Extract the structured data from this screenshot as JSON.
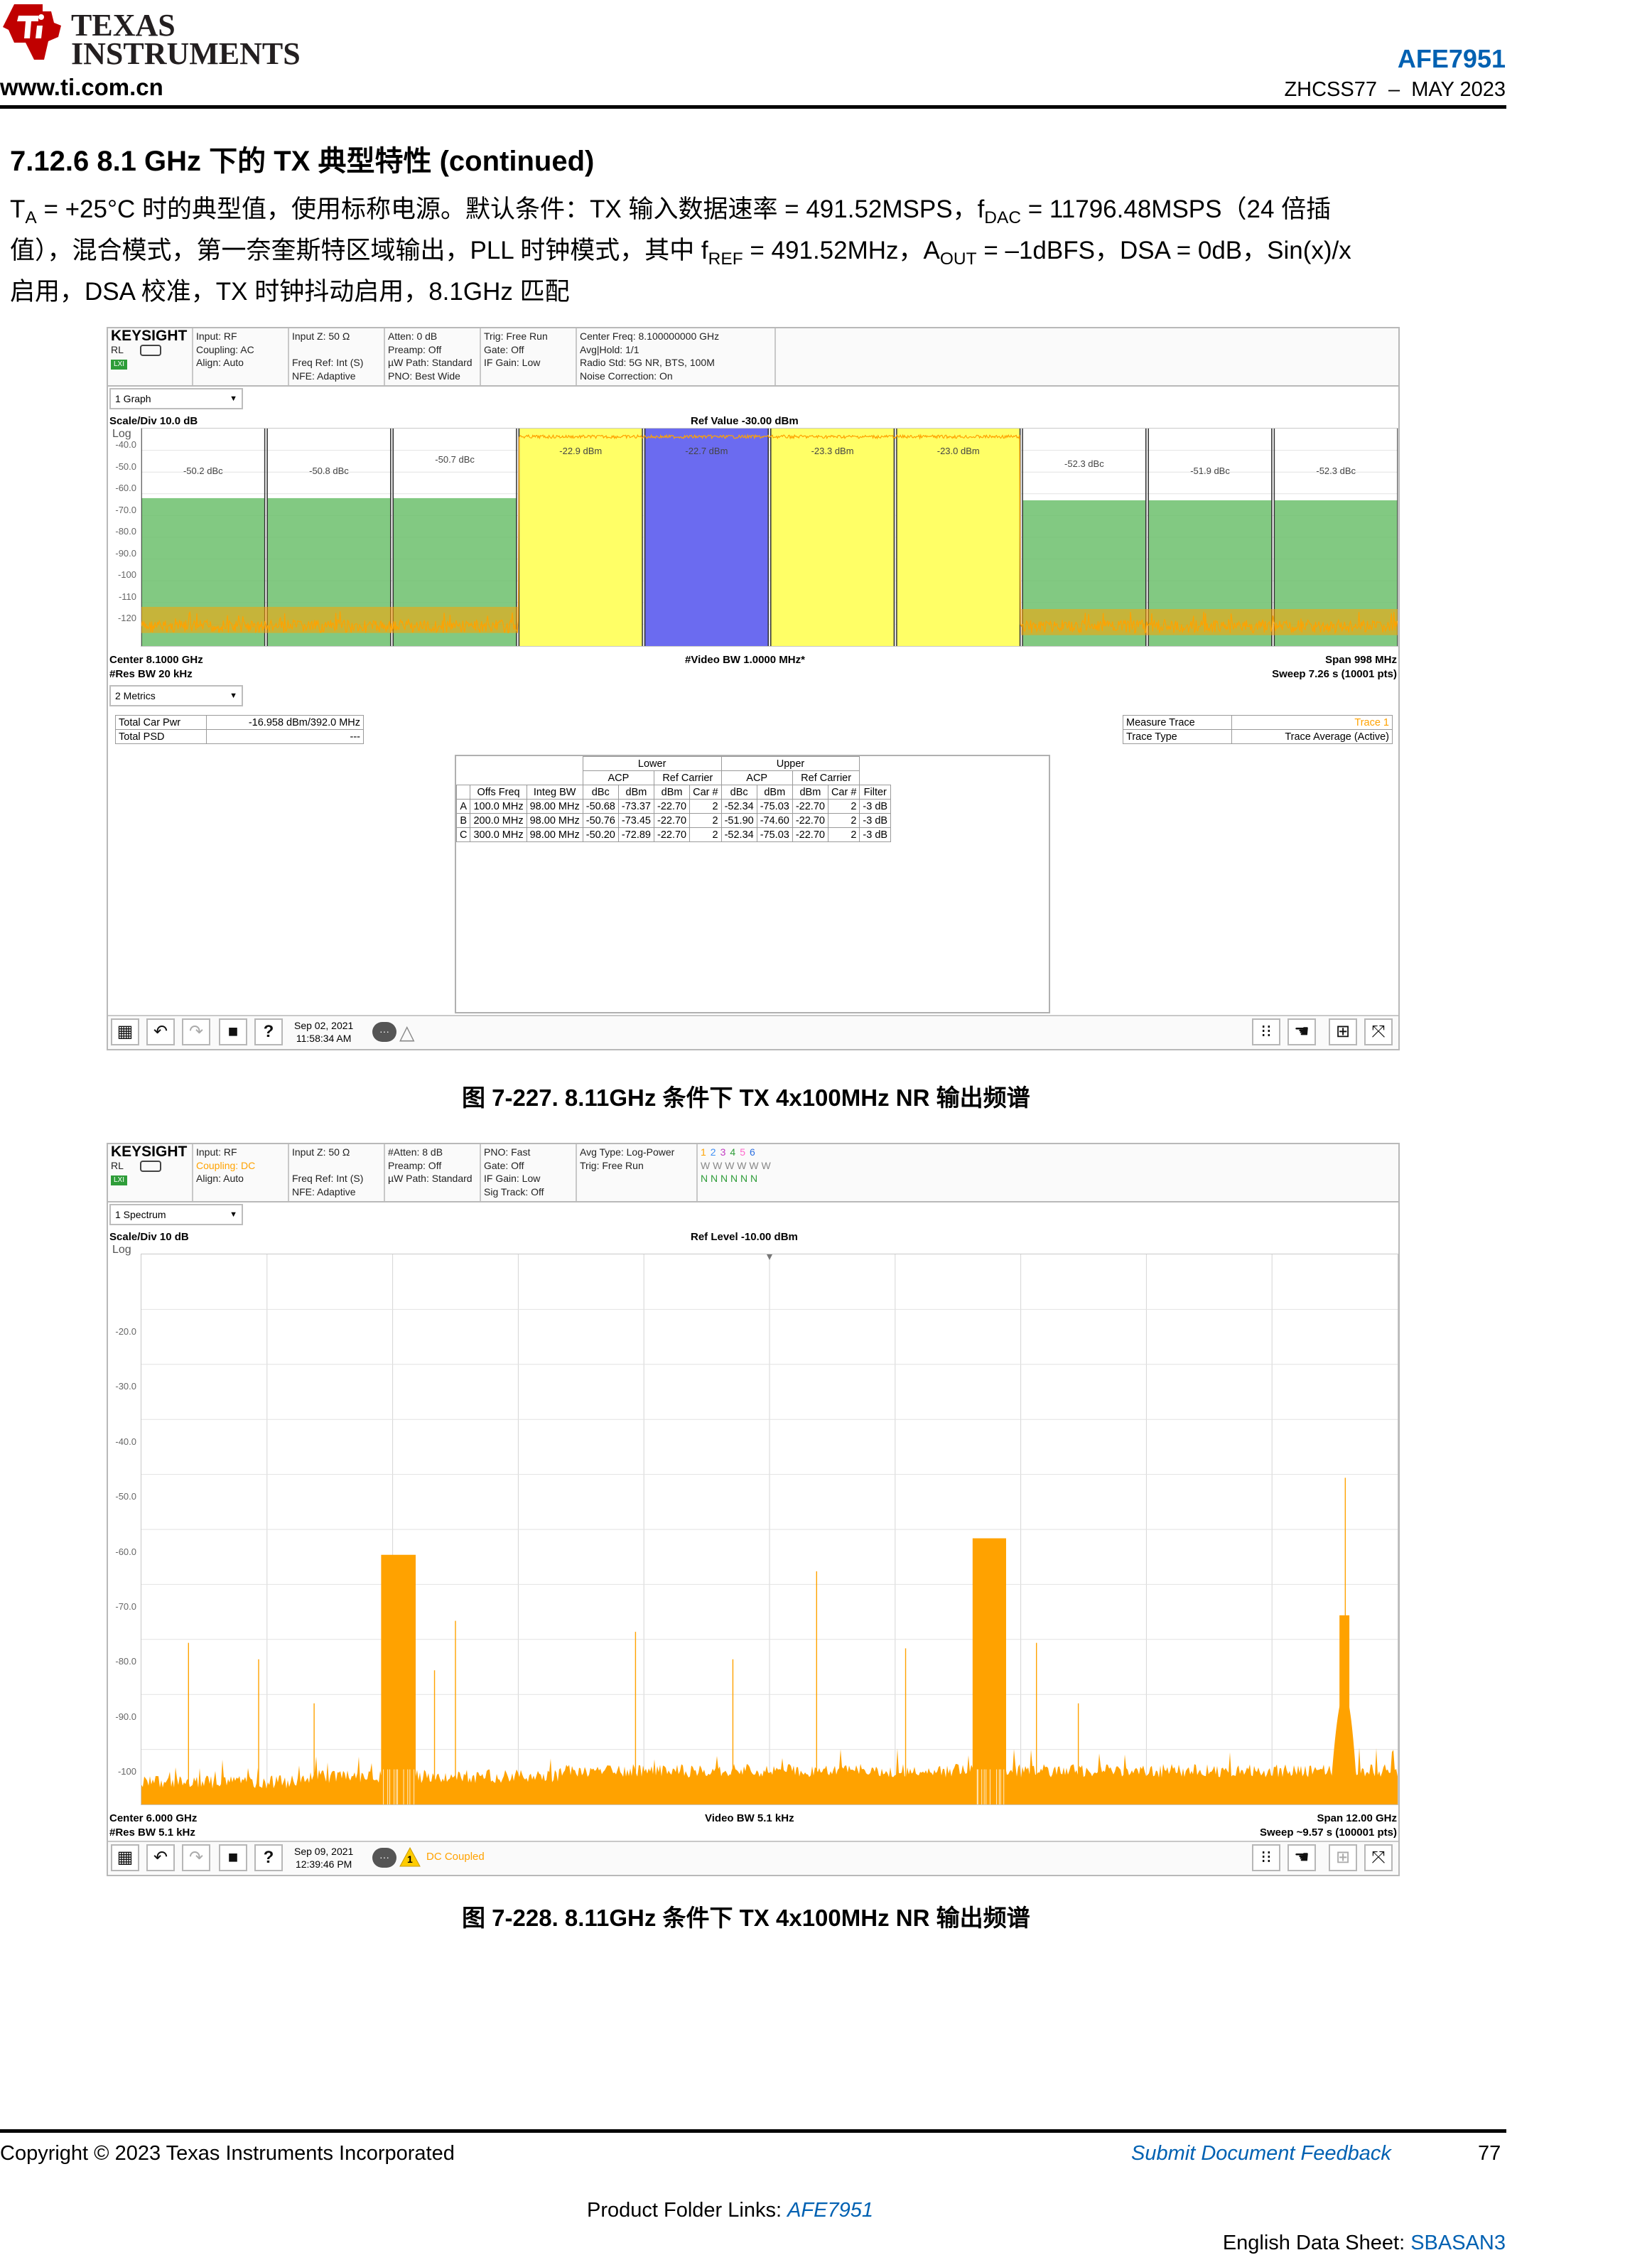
{
  "header": {
    "logo_line1": "TEXAS",
    "logo_line2": "INSTRUMENTS",
    "website": "www.ti.com.cn",
    "part_number": "AFE7951",
    "doc_id": "ZHCSS77",
    "doc_sep": "–",
    "doc_date": "MAY 2023"
  },
  "section": {
    "title": "7.12.6 8.1 GHz 下的 TX 典型特性 (continued)",
    "para_t": "T",
    "para_t_sub": "A",
    "para_1": " = +25°C 时的典型值，使用标称电源。默认条件：TX 输入数据速率 = 491.52MSPS，f",
    "para_fdac_sub": "DAC",
    "para_2": " = 11796.48MSPS（24 倍插",
    "para_3": "值），混合模式，第一奈奎斯特区域输出，PLL 时钟模式，其中 f",
    "para_fref_sub": "REF",
    "para_4": " = 491.52MHz，A",
    "para_aout_sub": "OUT",
    "para_5": " = –1dBFS，DSA = 0dB，Sin(x)/x",
    "para_6": "启用，DSA 校准，TX 时钟抖动启用，8.1GHz 匹配"
  },
  "fig1": {
    "logo": "KEYSIGHT",
    "rl": "RL",
    "lxi": "LXI",
    "info": [
      [
        "Input: RF",
        "Coupling: AC",
        "Align: Auto",
        ""
      ],
      [
        "Input Z: 50 Ω",
        "",
        "Freq Ref: Int (S)",
        "NFE: Adaptive"
      ],
      [
        "Atten: 0 dB",
        "Preamp: Off",
        "µW Path: Standard",
        "PNO: Best Wide"
      ],
      [
        "Trig: Free Run",
        "Gate: Off",
        "IF Gain: Low",
        ""
      ],
      [
        "Center Freq: 8.100000000 GHz",
        "Avg|Hold: 1/1",
        "Radio Std: 5G NR, BTS, 100M",
        "Noise Correction: On"
      ]
    ],
    "dropdown": "1 Graph",
    "scale": "Scale/Div 10.0 dB",
    "ref": "Ref Value -30.00 dBm",
    "log": "Log",
    "yticks": [
      "-40.0",
      "-50.0",
      "-60.0",
      "-70.0",
      "-80.0",
      "-90.0",
      "-100",
      "-110",
      "-120"
    ],
    "band_labels": [
      "-50.2 dBc",
      "-50.8 dBc",
      "-50.7 dBc",
      "-22.9 dBm",
      "-22.7 dBm",
      "-23.3 dBm",
      "-23.0 dBm",
      "-52.3 dBc",
      "-51.9 dBc",
      "-52.3 dBc"
    ],
    "center": "Center 8.1000 GHz",
    "res_bw": "#Res BW 20 kHz",
    "video_bw": "#Video BW 1.0000 MHz*",
    "span": "Span 998 MHz",
    "sweep": "Sweep 7.26 s (10001 pts)",
    "metrics_dropdown": "2 Metrics",
    "total_car_pwr_label": "Total Car Pwr",
    "total_car_pwr_value": "-16.958 dBm/392.0 MHz",
    "total_psd_label": "Total PSD",
    "total_psd_value": "---",
    "measure_trace_label": "Measure Trace",
    "measure_trace_value": "Trace 1",
    "trace_type_label": "Trace Type",
    "trace_type_value": "Trace Average (Active)",
    "table": {
      "lower": "Lower",
      "upper": "Upper",
      "acp": "ACP",
      "ref_carrier": "Ref Carrier",
      "cols": [
        "",
        "Offs Freq",
        "Integ BW",
        "dBc",
        "dBm",
        "dBm",
        "Car #",
        "dBc",
        "dBm",
        "dBm",
        "Car #",
        "Filter"
      ],
      "rows": [
        [
          "A",
          "100.0 MHz",
          "98.00 MHz",
          "-50.68",
          "-73.37",
          "-22.70",
          "2",
          "-52.34",
          "-75.03",
          "-22.70",
          "2",
          "-3 dB"
        ],
        [
          "B",
          "200.0 MHz",
          "98.00 MHz",
          "-50.76",
          "-73.45",
          "-22.70",
          "2",
          "-51.90",
          "-74.60",
          "-22.70",
          "2",
          "-3 dB"
        ],
        [
          "C",
          "300.0 MHz",
          "98.00 MHz",
          "-50.20",
          "-72.89",
          "-22.70",
          "2",
          "-52.34",
          "-75.03",
          "-22.70",
          "2",
          "-3 dB"
        ]
      ]
    },
    "date": "Sep 02, 2021",
    "time": "11:58:34 AM",
    "caption": "图 7-227. 8.11GHz 条件下 TX 4x100MHz NR 输出频谱"
  },
  "fig2": {
    "logo": "KEYSIGHT",
    "rl": "RL",
    "lxi": "LXI",
    "info": [
      [
        "Input: RF",
        "Coupling: DC",
        "Align: Auto",
        ""
      ],
      [
        "Input Z: 50 Ω",
        "",
        "Freq Ref: Int (S)",
        "NFE: Adaptive"
      ],
      [
        "#Atten: 8 dB",
        "Preamp: Off",
        "µW Path: Standard",
        ""
      ],
      [
        "PNO: Fast",
        "Gate: Off",
        "IF Gain: Low",
        "Sig Track: Off"
      ],
      [
        "Avg Type: Log-Power",
        "Trig: Free Run",
        "",
        ""
      ]
    ],
    "trace_nums": [
      "1",
      "2",
      "3",
      "4",
      "5",
      "6"
    ],
    "trace_w": "W W W W W W",
    "trace_n": "N N N N N N",
    "dropdown": "1 Spectrum",
    "scale": "Scale/Div 10 dB",
    "ref": "Ref Level -10.00 dBm",
    "log": "Log",
    "yticks": [
      "-20.0",
      "-30.0",
      "-40.0",
      "-50.0",
      "-60.0",
      "-70.0",
      "-80.0",
      "-90.0",
      "-100"
    ],
    "center": "Center 6.000 GHz",
    "res_bw": "#Res BW 5.1 kHz",
    "video_bw": "Video BW 5.1 kHz",
    "span": "Span 12.00 GHz",
    "sweep": "Sweep ~9.57 s (100001 pts)",
    "date": "Sep 09, 2021",
    "time": "12:39:46 PM",
    "warning_num": "1",
    "status": "DC Coupled",
    "caption": "图 7-228. 8.11GHz 条件下 TX 4x100MHz NR 输出频谱"
  },
  "footer": {
    "copyright": "Copyright © 2023 Texas Instruments Incorporated",
    "feedback": "Submit Document Feedback",
    "page": "77",
    "folder_label": "Product Folder Links: ",
    "folder_link": "AFE7951",
    "english_label": "English Data Sheet: ",
    "english_link": "SBASAN3"
  },
  "colors": {
    "accent_blue": "#0061b2",
    "ti_red": "#c00000",
    "trace_orange": "#ffa200",
    "carrier_yellow": "#ffff66",
    "ref_carrier_blue": "#6b6bf0",
    "adjacent_green": "#6cbf6c"
  },
  "chart_data": [
    {
      "type": "area",
      "ref_value_dbm": -30.0,
      "ylim": [
        -130,
        -30
      ],
      "center_ghz": 8.1,
      "span_mhz": 998,
      "series": [
        {
          "name": "Trace 1",
          "segments": [
            {
              "level": -121,
              "offsets_mhz": [
                -499,
                -150
              ]
            },
            {
              "level": -52,
              "offsets_mhz": [
                -200,
                200
              ]
            },
            {
              "level": -122,
              "offsets_mhz": [
                200,
                499
              ]
            }
          ]
        }
      ],
      "carriers_dbm": [
        -22.9,
        -22.7,
        -23.3,
        -23.0
      ],
      "acp_lower_dbc": [
        -50.2,
        -50.8,
        -50.7
      ],
      "acp_upper_dbc": [
        -52.3,
        -51.9,
        -52.3
      ]
    },
    {
      "type": "line",
      "ref_level_dbm": -10.0,
      "ylim": [
        -110,
        -10
      ],
      "xlim_ghz": [
        0,
        12
      ],
      "features_ghz_dbm": [
        [
          0.6,
          -77
        ],
        [
          1.7,
          -83
        ],
        [
          3.0,
          -60
        ],
        [
          5.2,
          -64
        ],
        [
          7.5,
          -58
        ],
        [
          11.5,
          -46
        ],
        [
          11.4,
          -68
        ]
      ]
    }
  ]
}
